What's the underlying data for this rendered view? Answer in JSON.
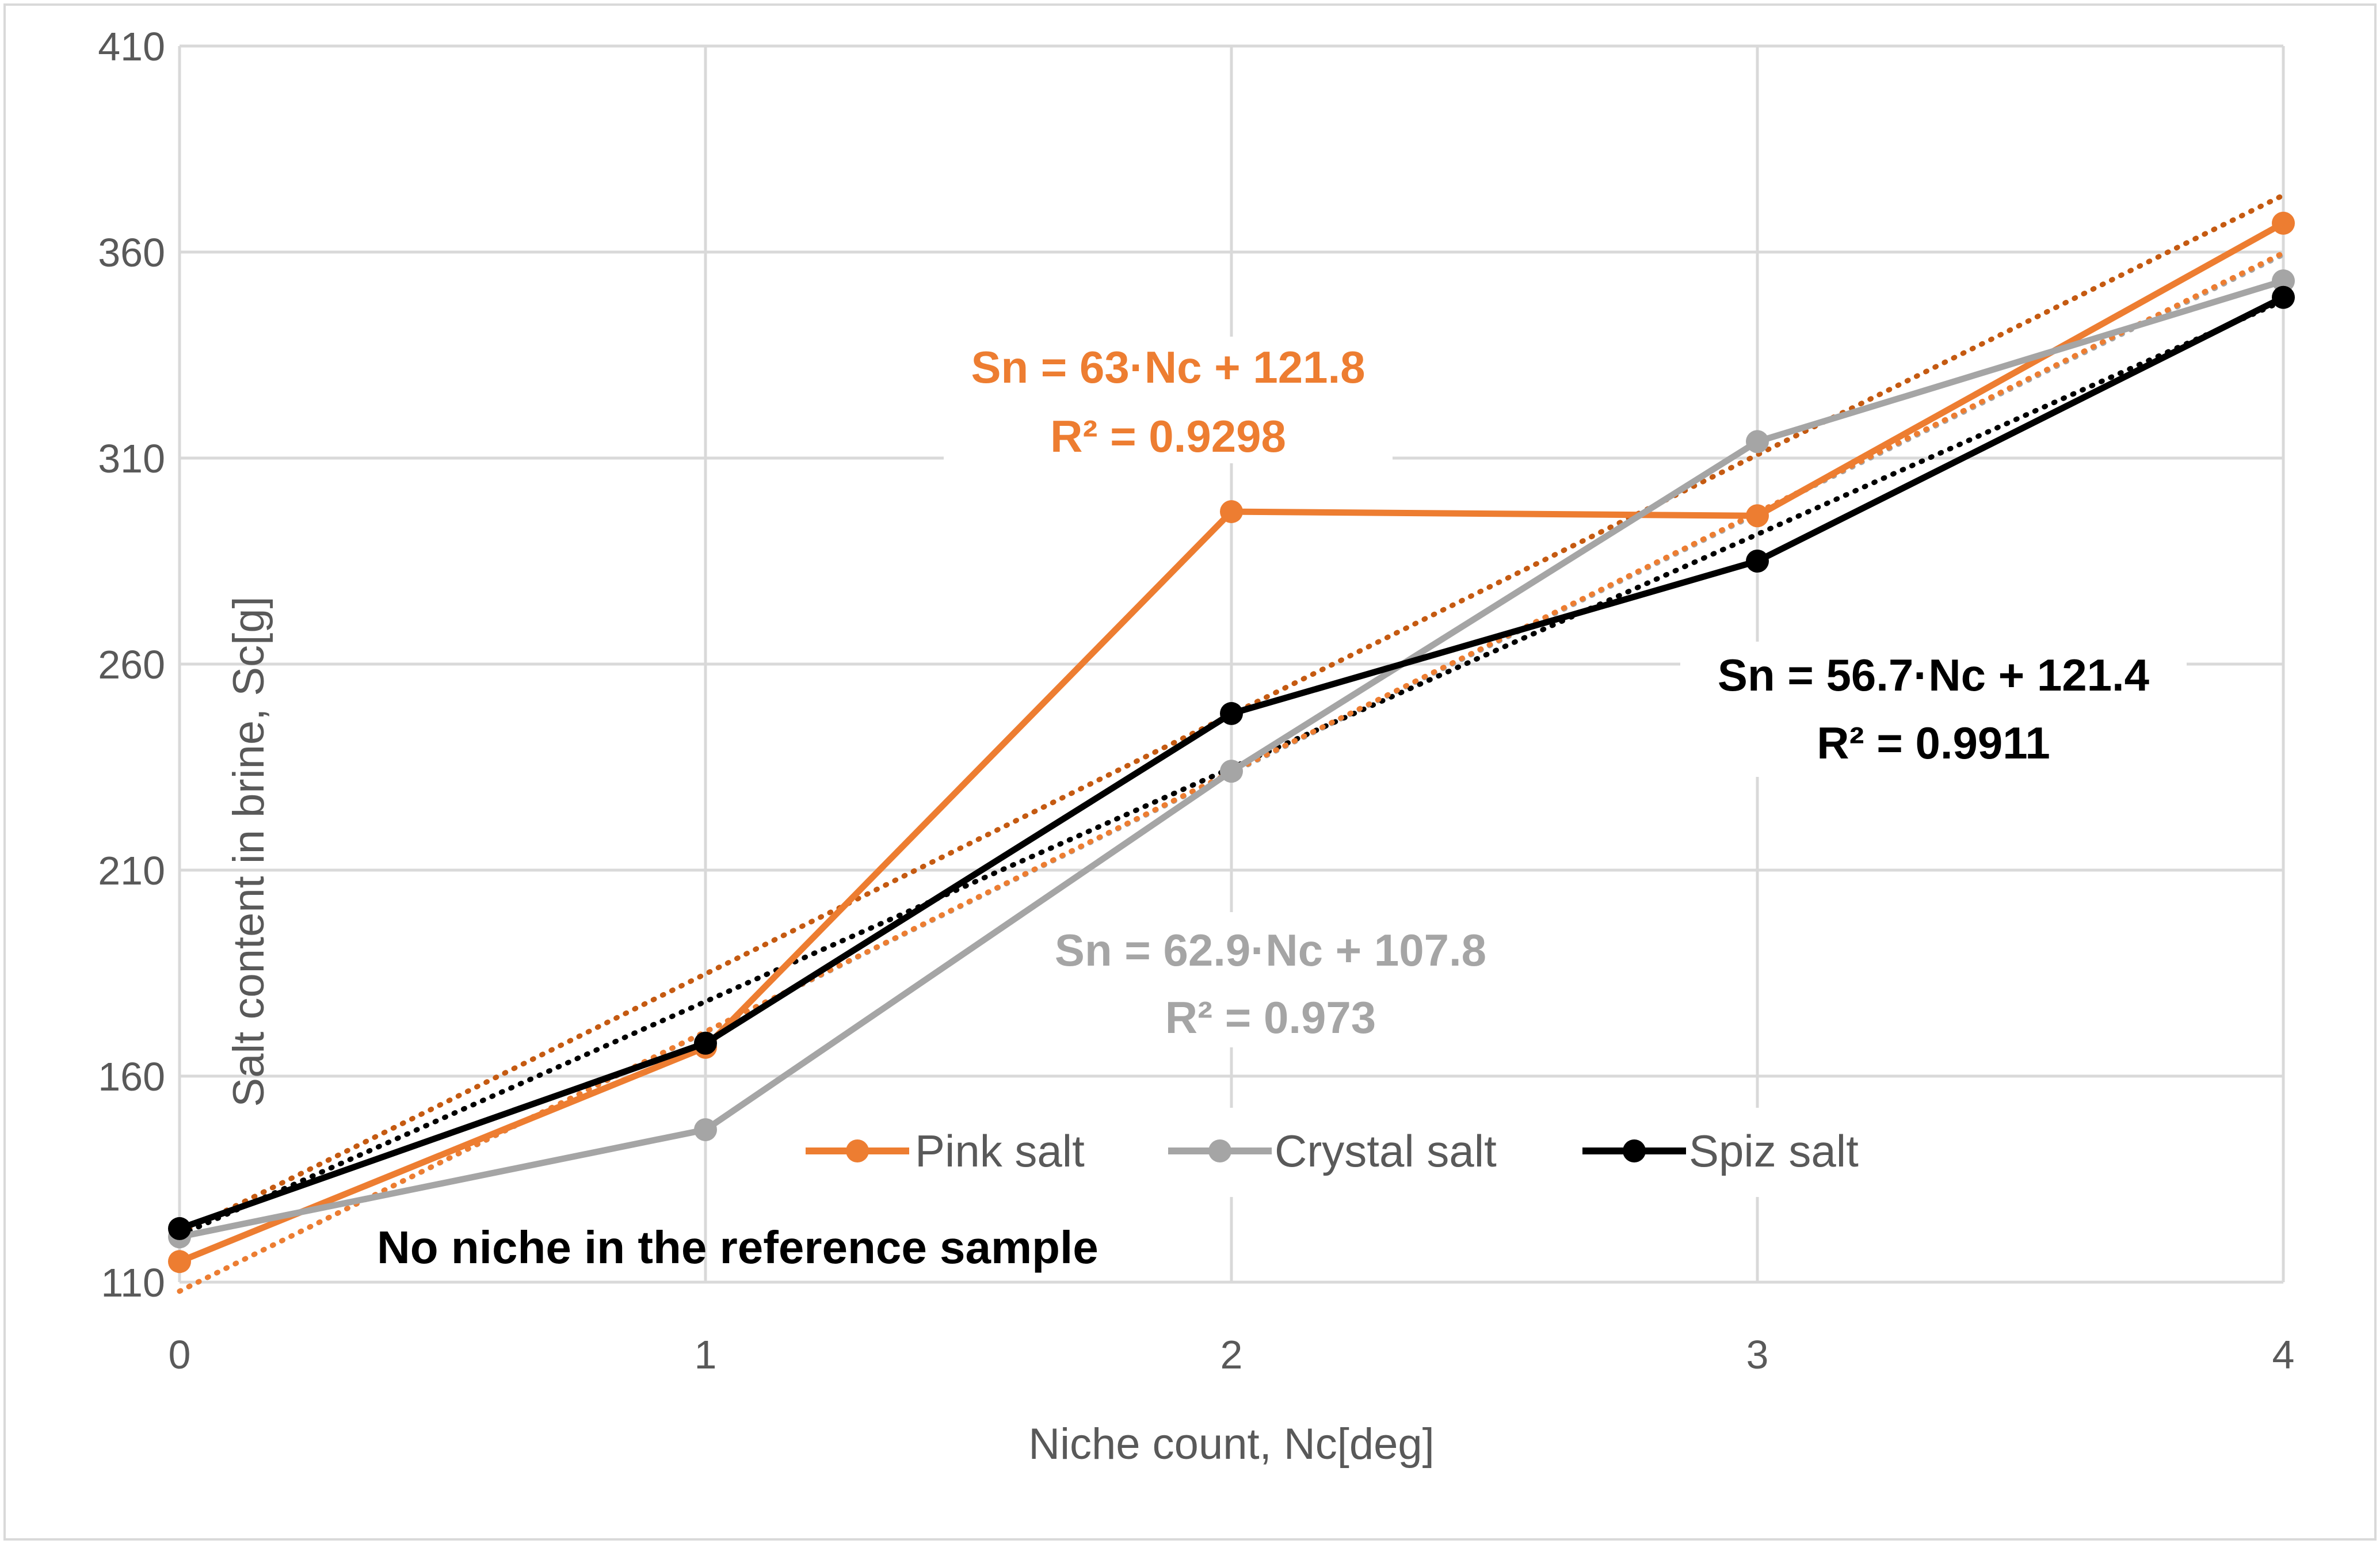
{
  "chart_data": {
    "type": "line",
    "title": "",
    "xlabel": "Niche count, Nc[deg]",
    "ylabel": "Salt content in brine, Sc[g]",
    "x": [
      0,
      1,
      2,
      3,
      4
    ],
    "x_tick_labels": [
      "0",
      "1",
      "2",
      "3",
      "4"
    ],
    "xlim": [
      0,
      4
    ],
    "ylim": [
      110,
      410
    ],
    "y_tick_values": [
      110,
      160,
      210,
      260,
      310,
      360,
      410
    ],
    "y_tick_labels": [
      "110",
      "160",
      "210",
      "260",
      "310",
      "360",
      "410"
    ],
    "grid": true,
    "legend_position": "bottom-center inside plot",
    "series": [
      {
        "name": "Pink salt",
        "color": "#ED7D31",
        "values": [
          115,
          167,
          297,
          296,
          367
        ]
      },
      {
        "name": "Crystal salt",
        "color": "#A5A5A5",
        "values": [
          121,
          147,
          234,
          314,
          353
        ]
      },
      {
        "name": "Spiz salt",
        "color": "#000000",
        "values": [
          123,
          168,
          248,
          285,
          349
        ]
      }
    ],
    "trendlines": [
      {
        "series": "Pink salt",
        "color": "#C55A11",
        "slope": 63,
        "intercept": 121.8,
        "line1": "Sn = 63·Nc + 121.8",
        "line2": "R² = 0.9298"
      },
      {
        "series": "Crystal salt",
        "color": "#A5A5A5",
        "slope": 62.9,
        "intercept": 107.8,
        "line1": "Sn = 62.9·Nc + 107.8",
        "line2": "R² = 0.973"
      },
      {
        "series": "Spiz salt",
        "color": "#000000",
        "slope": 56.7,
        "intercept": 121.4,
        "line1": "Sn = 56.7·Nc + 121.4",
        "line2": "R² = 0.9911"
      }
    ],
    "extra_trendline": {
      "color": "#ED7D31",
      "slope": 63,
      "intercept": 107.8
    },
    "annotation": "No niche in the reference sample"
  }
}
